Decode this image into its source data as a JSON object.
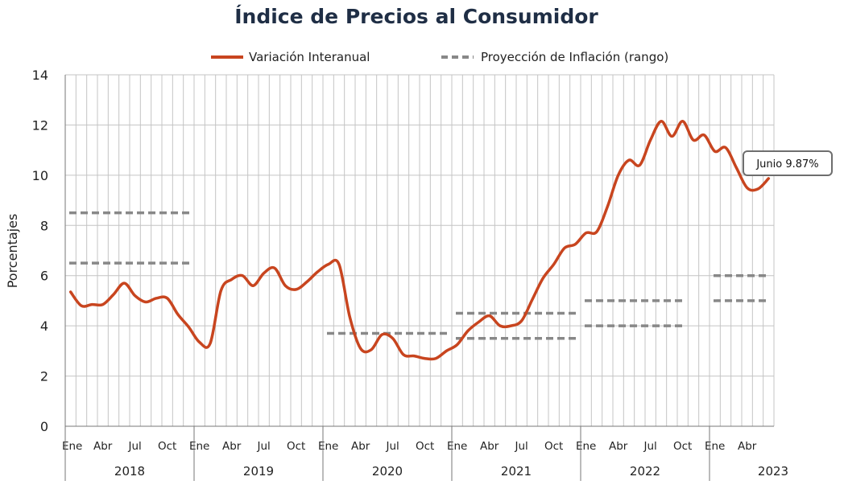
{
  "chart_data": {
    "type": "line",
    "title": "Índice de Precios al Consumidor",
    "ylabel": "Porcentajes",
    "ylim": [
      0,
      14
    ],
    "yticks": [
      0,
      2,
      4,
      6,
      8,
      10,
      12,
      14
    ],
    "grid": true,
    "legend_position": "top",
    "start": "2018-01",
    "month_labels": [
      "Ene",
      "Abr",
      "Jul",
      "Oct"
    ],
    "years": [
      "2018",
      "2019",
      "2020",
      "2021",
      "2022",
      "2023"
    ],
    "series": [
      {
        "name": "Variación Interanual",
        "color": "#c8451f",
        "style": "solid",
        "values": [
          5.35,
          4.8,
          4.85,
          4.85,
          5.25,
          5.7,
          5.2,
          4.95,
          5.1,
          5.1,
          4.45,
          3.95,
          3.35,
          3.3,
          5.4,
          5.85,
          6.0,
          5.6,
          6.1,
          6.3,
          5.6,
          5.45,
          5.75,
          6.15,
          6.45,
          6.45,
          4.35,
          3.1,
          3.05,
          3.65,
          3.5,
          2.85,
          2.8,
          2.7,
          2.7,
          3.0,
          3.25,
          3.8,
          4.15,
          4.4,
          4.0,
          4.0,
          4.2,
          5.05,
          5.9,
          6.45,
          7.1,
          7.25,
          7.7,
          7.75,
          8.75,
          10.0,
          10.6,
          10.4,
          11.4,
          12.15,
          11.55,
          12.15,
          11.4,
          11.6,
          10.95,
          11.1,
          10.3,
          9.5,
          9.45,
          9.87
        ]
      },
      {
        "name": "Proyección de Inflación (rango)",
        "color": "#888888",
        "style": "dashed",
        "segments": [
          {
            "from": "2018-01",
            "to": "2018-12",
            "value": 8.5
          },
          {
            "from": "2018-01",
            "to": "2018-12",
            "value": 6.5
          },
          {
            "from": "2020-01",
            "to": "2020-12",
            "value": 3.7
          },
          {
            "from": "2021-01",
            "to": "2021-12",
            "value": 4.5
          },
          {
            "from": "2021-01",
            "to": "2021-12",
            "value": 3.5
          },
          {
            "from": "2022-01",
            "to": "2022-10",
            "value": 5.0
          },
          {
            "from": "2022-01",
            "to": "2022-10",
            "value": 4.0
          },
          {
            "from": "2023-01",
            "to": "2023-06",
            "value": 6.0
          },
          {
            "from": "2023-01",
            "to": "2023-06",
            "value": 5.0
          }
        ]
      }
    ],
    "annotation": {
      "text": "Junio 9.87%",
      "x": "2023-06",
      "y": 9.87
    }
  }
}
